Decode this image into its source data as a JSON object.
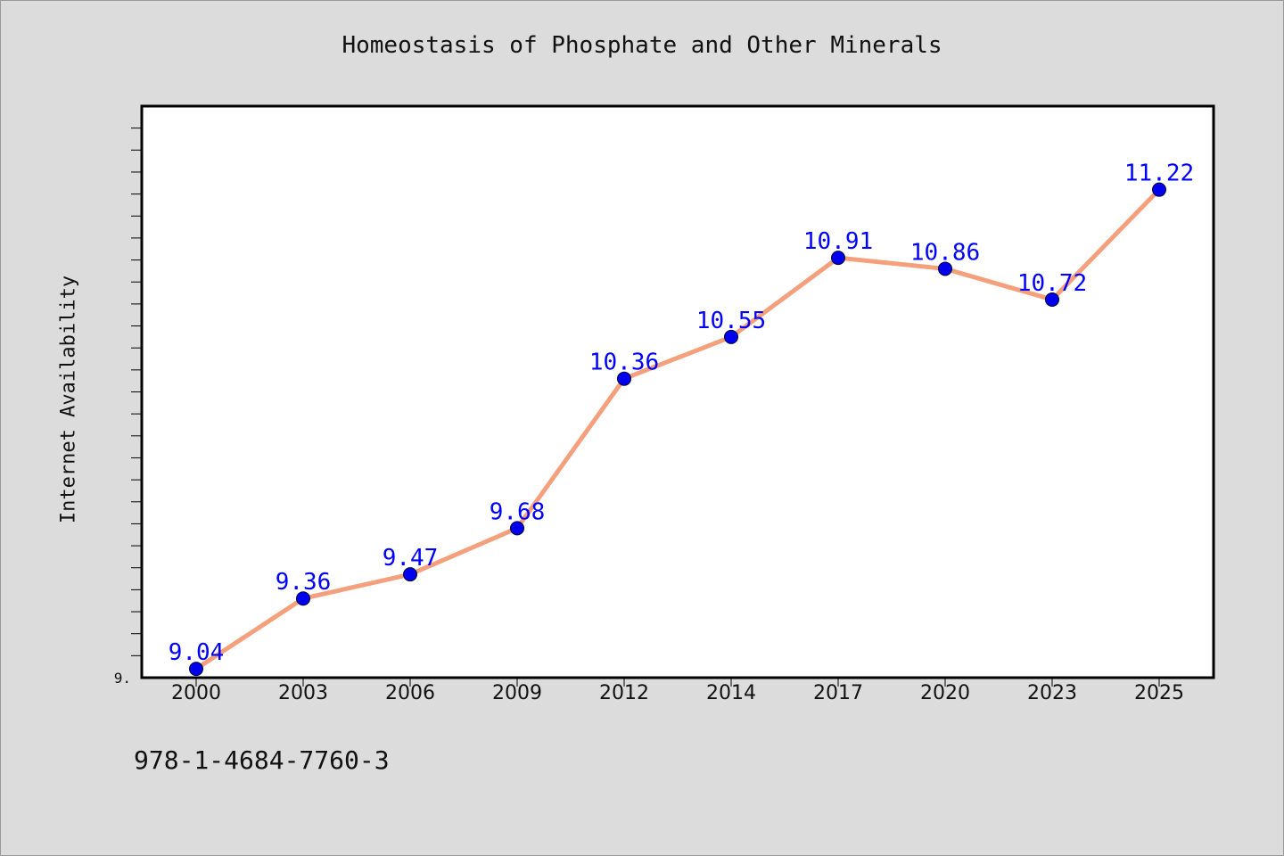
{
  "page": {
    "footer_code": "978-1-4684-7760-3"
  },
  "chart_data": {
    "type": "line",
    "title": "Homeostasis of Phosphate and Other Minerals",
    "xlabel": "",
    "ylabel": "Internet Availability",
    "categories": [
      "2000",
      "2003",
      "2006",
      "2009",
      "2012",
      "2014",
      "2017",
      "2020",
      "2023",
      "2025"
    ],
    "series": [
      {
        "values": [
          9.04,
          9.36,
          9.47,
          9.68,
          10.36,
          10.55,
          10.91,
          10.86,
          10.72,
          11.22
        ],
        "labels": [
          "9.04",
          "9.36",
          "9.47",
          "9.68",
          "10.36",
          "10.55",
          "10.91",
          "10.86",
          "10.72",
          "11.22"
        ]
      }
    ],
    "ylim": [
      9.0,
      11.6
    ],
    "y_tick_label": "9.",
    "grid": false,
    "legend": "none",
    "colors": {
      "line": "#f4a07c",
      "marker": "#0000ee",
      "data_label": "#0000ff",
      "plot_bg": "#ffffff",
      "page_bg": "#dcdcdc"
    }
  }
}
